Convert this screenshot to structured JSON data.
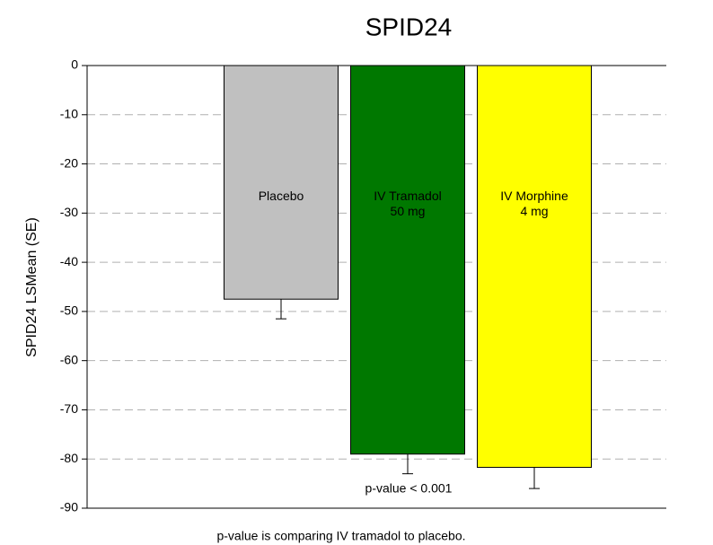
{
  "chart_data": {
    "type": "bar",
    "title": "SPID24",
    "y_label": "SPID24 LSMean (SE)",
    "categories": [
      "Placebo",
      "IV Tramadol\n50 mg",
      "IV Morphine\n4 mg"
    ],
    "values": [
      -47.5,
      -79,
      -81.7
    ],
    "errors": [
      4,
      4,
      4.3
    ],
    "colors": [
      "#c0c0c0",
      "#007800",
      "#ffff00"
    ],
    "ylim": [
      -90,
      0
    ],
    "yticks": [
      0,
      -10,
      -20,
      -30,
      -40,
      -50,
      -60,
      -70,
      -80,
      -90
    ],
    "grid": true,
    "annotation": "p-value < 0.001",
    "footnote": "p-value is comparing IV tramadol to placebo."
  }
}
